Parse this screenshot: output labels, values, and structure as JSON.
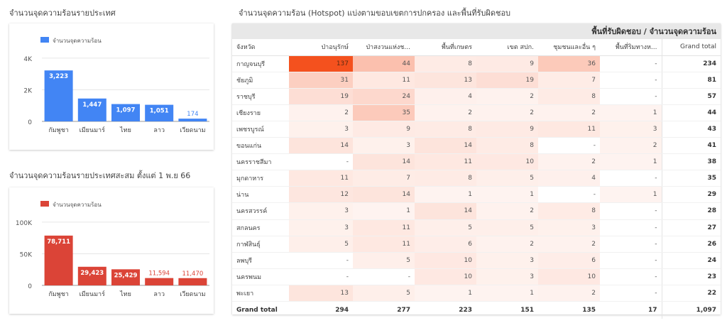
{
  "titles": {
    "country": "จำนวนจุดความร้อนรายประเทศ",
    "country_cumulative": "จำนวนจุดความร้อนรายประเทศสะสม ตั้งแต่ 1 พ.ย 66",
    "table": "จำนวนจุดความร้อน (Hotspot) แบ่งตามขอบเขตการปกครอง และพื้นที่รับผิดชอบ"
  },
  "chart_data": [
    {
      "type": "bar",
      "legend": "จำนวนจุดความร้อน",
      "legend_position": "top-left",
      "categories": [
        "กัมพูชา",
        "เมียนมาร์",
        "ไทย",
        "ลาว",
        "เวียดนาม"
      ],
      "values": [
        3223,
        1447,
        1097,
        1051,
        174
      ],
      "value_labels": [
        "3,223",
        "1,447",
        "1,097",
        "1,051",
        "174"
      ],
      "yticks": [
        "0",
        "2K",
        "4K"
      ],
      "ytick_values": [
        0,
        2000,
        4000
      ],
      "ylim": [
        0,
        4400
      ],
      "grid": true,
      "color": "#4285f4"
    },
    {
      "type": "bar",
      "legend": "จำนวนจุดความร้อน",
      "legend_position": "top-left",
      "categories": [
        "กัมพูชา",
        "เมียนมาร์",
        "ไทย",
        "ลาว",
        "เวียดนาม"
      ],
      "values": [
        78711,
        29423,
        25429,
        11594,
        11470
      ],
      "value_labels": [
        "78,711",
        "29,423",
        "25,429",
        "11,594",
        "11,470"
      ],
      "yticks": [
        "0",
        "50K",
        "100K"
      ],
      "ytick_values": [
        0,
        50000,
        100000
      ],
      "ylim": [
        0,
        110000
      ],
      "grid": true,
      "color": "#db4437"
    },
    {
      "type": "table",
      "header_group": "พื้นที่รับผิดชอบ / จำนวนจุดความร้อน",
      "row_header": "จังหวัด",
      "columns": [
        "ป่าอนุรักษ์",
        "ป่าสงวนแห่งช...",
        "พื้นที่เกษตร",
        "เขต สปก.",
        "ชุมชนและอื่น ๆ",
        "พื้นที่ริมทางห...",
        "Grand total"
      ],
      "heat_color": "#f4511e",
      "heat_max": 137,
      "rows": [
        {
          "province": "กาญจนบุรี",
          "values": [
            "137",
            "44",
            "8",
            "9",
            "36",
            "-",
            "234"
          ]
        },
        {
          "province": "ชัยภูมิ",
          "values": [
            "31",
            "11",
            "13",
            "19",
            "7",
            "-",
            "81"
          ]
        },
        {
          "province": "ราชบุรี",
          "values": [
            "19",
            "24",
            "4",
            "2",
            "8",
            "-",
            "57"
          ]
        },
        {
          "province": "เชียงราย",
          "values": [
            "2",
            "35",
            "2",
            "2",
            "2",
            "1",
            "44"
          ]
        },
        {
          "province": "เพชรบูรณ์",
          "values": [
            "3",
            "9",
            "8",
            "9",
            "11",
            "3",
            "43"
          ]
        },
        {
          "province": "ขอนแก่น",
          "values": [
            "14",
            "3",
            "14",
            "8",
            "-",
            "2",
            "41"
          ]
        },
        {
          "province": "นครราชสีมา",
          "values": [
            "-",
            "14",
            "11",
            "10",
            "2",
            "1",
            "38"
          ]
        },
        {
          "province": "มุกดาหาร",
          "values": [
            "11",
            "7",
            "8",
            "5",
            "4",
            "-",
            "35"
          ]
        },
        {
          "province": "น่าน",
          "values": [
            "12",
            "14",
            "1",
            "1",
            "-",
            "1",
            "29"
          ]
        },
        {
          "province": "นครสวรรค์",
          "values": [
            "3",
            "1",
            "14",
            "2",
            "8",
            "-",
            "28"
          ]
        },
        {
          "province": "สกลนคร",
          "values": [
            "3",
            "11",
            "5",
            "5",
            "3",
            "-",
            "27"
          ]
        },
        {
          "province": "กาฬสินธุ์",
          "values": [
            "5",
            "11",
            "6",
            "2",
            "2",
            "-",
            "26"
          ]
        },
        {
          "province": "ลพบุรี",
          "values": [
            "-",
            "5",
            "10",
            "3",
            "6",
            "-",
            "24"
          ]
        },
        {
          "province": "นครพนม",
          "values": [
            "-",
            "-",
            "10",
            "3",
            "10",
            "-",
            "23"
          ]
        },
        {
          "province": "พะเยา",
          "values": [
            "13",
            "5",
            "1",
            "1",
            "2",
            "-",
            "22"
          ]
        }
      ],
      "totals": {
        "label": "Grand total",
        "values": [
          "294",
          "277",
          "223",
          "151",
          "135",
          "17",
          "1,097"
        ]
      }
    }
  ]
}
